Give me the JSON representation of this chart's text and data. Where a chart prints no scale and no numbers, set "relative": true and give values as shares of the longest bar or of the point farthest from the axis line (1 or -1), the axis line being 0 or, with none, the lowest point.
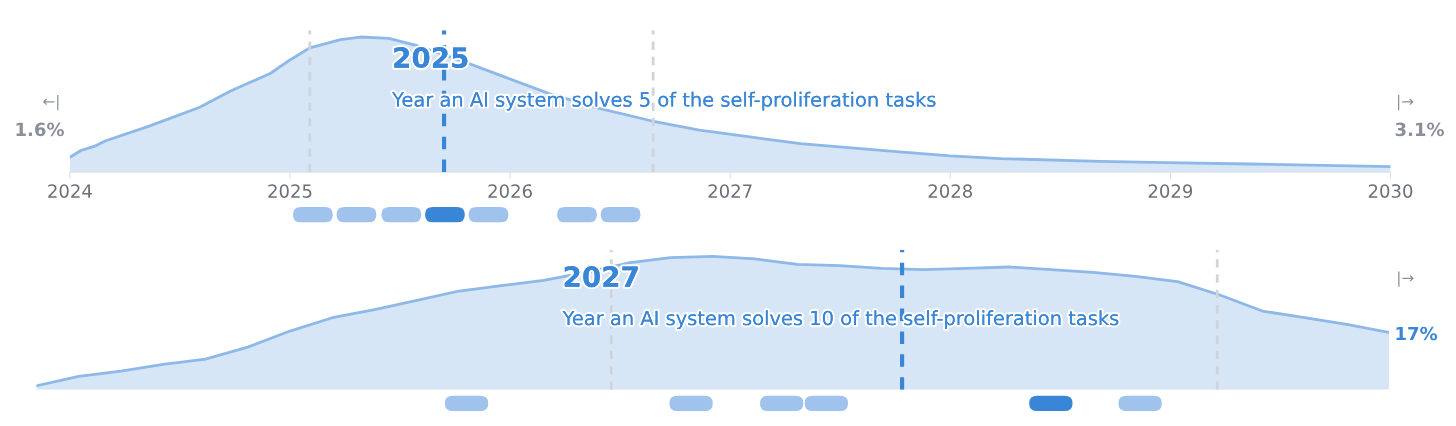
{
  "chart_data": [
    {
      "type": "area",
      "relative": true,
      "xlim": [
        2024,
        2030
      ],
      "xticks": [
        2024,
        2025,
        2026,
        2027,
        2028,
        2029,
        2030
      ],
      "tick_labels": "x",
      "grid": false,
      "x": [
        2024.0,
        2024.05,
        2024.11,
        2024.16,
        2024.36,
        2024.59,
        2024.73,
        2024.91,
        2025.0,
        2025.09,
        2025.23,
        2025.32,
        2025.45,
        2025.59,
        2025.77,
        2025.95,
        2026.18,
        2026.41,
        2026.64,
        2026.86,
        2027.09,
        2027.32,
        2027.55,
        2027.77,
        2028.0,
        2028.23,
        2028.68,
        2028.98,
        2029.36,
        2030.0
      ],
      "series": [
        {
          "color": "#8db8e8",
          "values": [
            0.11,
            0.16,
            0.19,
            0.23,
            0.34,
            0.48,
            0.6,
            0.73,
            0.83,
            0.92,
            0.98,
            1.0,
            0.99,
            0.93,
            0.83,
            0.72,
            0.58,
            0.47,
            0.38,
            0.31,
            0.26,
            0.21,
            0.18,
            0.15,
            0.12,
            0.1,
            0.08,
            0.07,
            0.06,
            0.04
          ]
        }
      ],
      "ref_lines": [
        {
          "axis": "x",
          "value": 2025.09,
          "color": "#d0d4da",
          "line_style": "dashed"
        },
        {
          "axis": "x",
          "value": 2025.7,
          "color": "#3a86d6",
          "line_style": "dashed"
        },
        {
          "axis": "x",
          "value": 2026.65,
          "color": "#d0d4da",
          "line_style": "dashed"
        }
      ],
      "annotations": [
        "←|",
        "1.6%",
        "|→",
        "3.1%",
        "2025",
        "Year an AI system solves 5 of the self-proliferation tasks"
      ]
    },
    {
      "type": "area",
      "relative": true,
      "tick_labels": false,
      "grid": false,
      "categories": [
        null,
        null,
        null,
        null,
        null,
        null,
        null,
        null,
        null,
        null,
        null,
        null,
        null,
        null,
        null,
        null,
        null,
        null,
        null,
        null,
        null,
        null,
        null,
        null,
        null,
        null,
        null,
        null,
        null,
        null,
        null,
        null,
        null
      ],
      "series": [
        {
          "color": "#8db8e8",
          "values": [
            0.03,
            0.1,
            0.14,
            0.19,
            0.23,
            0.32,
            0.44,
            0.54,
            0.6,
            0.67,
            0.74,
            0.78,
            0.82,
            0.88,
            0.95,
            0.99,
            1.0,
            0.98,
            0.94,
            0.93,
            0.91,
            0.9,
            0.91,
            0.92,
            0.9,
            0.88,
            0.85,
            0.81,
            0.71,
            0.59,
            0.54,
            0.49,
            0.43
          ]
        }
      ],
      "annotations": [
        "|→",
        "17%",
        "2027",
        "Year an AI system solves 10 of the self-proliferation tasks"
      ]
    }
  ]
}
